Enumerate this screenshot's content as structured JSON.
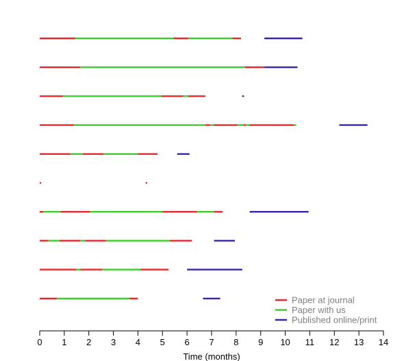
{
  "chart_data": {
    "type": "timeline",
    "title": "",
    "xlabel": "Time (months)",
    "ylabel": "",
    "xlim": [
      0,
      14
    ],
    "xticks": [
      0,
      1,
      2,
      3,
      4,
      5,
      6,
      7,
      8,
      9,
      10,
      11,
      12,
      13,
      14
    ],
    "grid": false,
    "legend_position": "bottom-right",
    "series": [
      {
        "name": "Paper at journal",
        "color": "#e8262e"
      },
      {
        "name": "Paper with us",
        "color": "#3ccd2a"
      },
      {
        "name": "Published online/print",
        "color": "#3a22b0"
      }
    ],
    "rows": [
      {
        "segments": [
          {
            "series": 0,
            "start": 0.0,
            "end": 1.45
          },
          {
            "series": 1,
            "start": 1.45,
            "end": 5.45
          },
          {
            "series": 0,
            "start": 5.45,
            "end": 6.05
          },
          {
            "series": 1,
            "start": 6.05,
            "end": 7.85
          },
          {
            "series": 0,
            "start": 7.85,
            "end": 8.2
          },
          {
            "series": 2,
            "start": 9.15,
            "end": 10.7
          }
        ]
      },
      {
        "segments": [
          {
            "series": 0,
            "start": 0.0,
            "end": 1.65
          },
          {
            "series": 1,
            "start": 1.65,
            "end": 8.35
          },
          {
            "series": 0,
            "start": 8.35,
            "end": 9.15
          },
          {
            "series": 2,
            "start": 9.15,
            "end": 10.5
          }
        ]
      },
      {
        "segments": [
          {
            "series": 0,
            "start": 0.0,
            "end": 0.95
          },
          {
            "series": 1,
            "start": 0.95,
            "end": 4.95
          },
          {
            "series": 0,
            "start": 4.95,
            "end": 5.85
          },
          {
            "series": 1,
            "start": 5.85,
            "end": 6.05
          },
          {
            "series": 0,
            "start": 6.05,
            "end": 6.75
          },
          {
            "series": 2,
            "start": 8.25,
            "end": 8.32
          }
        ]
      },
      {
        "segments": [
          {
            "series": 0,
            "start": 0.0,
            "end": 1.4
          },
          {
            "series": 1,
            "start": 1.4,
            "end": 6.75
          },
          {
            "series": 0,
            "start": 6.75,
            "end": 6.95
          },
          {
            "series": 1,
            "start": 6.95,
            "end": 7.1
          },
          {
            "series": 0,
            "start": 7.1,
            "end": 8.05
          },
          {
            "series": 1,
            "start": 8.05,
            "end": 8.3
          },
          {
            "series": 0,
            "start": 8.3,
            "end": 8.4
          },
          {
            "series": 1,
            "start": 8.4,
            "end": 8.55
          },
          {
            "series": 0,
            "start": 8.55,
            "end": 10.35
          },
          {
            "series": 1,
            "start": 10.35,
            "end": 10.45
          },
          {
            "series": 2,
            "start": 12.2,
            "end": 13.35
          }
        ]
      },
      {
        "segments": [
          {
            "series": 0,
            "start": 0.0,
            "end": 1.25
          },
          {
            "series": 1,
            "start": 1.25,
            "end": 1.75
          },
          {
            "series": 0,
            "start": 1.75,
            "end": 2.6
          },
          {
            "series": 1,
            "start": 2.6,
            "end": 4.0
          },
          {
            "series": 0,
            "start": 4.0,
            "end": 4.8
          },
          {
            "series": 2,
            "start": 5.6,
            "end": 6.1
          }
        ]
      },
      {
        "segments": [
          {
            "series": 0,
            "start": 0.0,
            "end": 0.06
          },
          {
            "series": 0,
            "start": 4.32,
            "end": 4.38
          }
        ]
      },
      {
        "segments": [
          {
            "series": 0,
            "start": 0.0,
            "end": 0.15
          },
          {
            "series": 1,
            "start": 0.15,
            "end": 0.85
          },
          {
            "series": 0,
            "start": 0.85,
            "end": 2.05
          },
          {
            "series": 1,
            "start": 2.05,
            "end": 5.0
          },
          {
            "series": 0,
            "start": 5.0,
            "end": 6.4
          },
          {
            "series": 1,
            "start": 6.4,
            "end": 7.1
          },
          {
            "series": 0,
            "start": 7.1,
            "end": 7.45
          },
          {
            "series": 2,
            "start": 8.55,
            "end": 10.95
          }
        ]
      },
      {
        "segments": [
          {
            "series": 0,
            "start": 0.0,
            "end": 0.35
          },
          {
            "series": 1,
            "start": 0.35,
            "end": 0.8
          },
          {
            "series": 0,
            "start": 0.8,
            "end": 1.65
          },
          {
            "series": 1,
            "start": 1.65,
            "end": 1.85
          },
          {
            "series": 0,
            "start": 1.85,
            "end": 2.7
          },
          {
            "series": 1,
            "start": 2.7,
            "end": 5.3
          },
          {
            "series": 0,
            "start": 5.3,
            "end": 6.2
          },
          {
            "series": 2,
            "start": 7.1,
            "end": 7.95
          }
        ]
      },
      {
        "segments": [
          {
            "series": 0,
            "start": 0.0,
            "end": 1.5
          },
          {
            "series": 1,
            "start": 1.5,
            "end": 1.65
          },
          {
            "series": 0,
            "start": 1.65,
            "end": 2.55
          },
          {
            "series": 1,
            "start": 2.55,
            "end": 4.1
          },
          {
            "series": 0,
            "start": 4.1,
            "end": 5.25
          },
          {
            "series": 2,
            "start": 6.0,
            "end": 8.25
          }
        ]
      },
      {
        "segments": [
          {
            "series": 0,
            "start": 0.0,
            "end": 0.7
          },
          {
            "series": 1,
            "start": 0.7,
            "end": 3.65
          },
          {
            "series": 0,
            "start": 3.65,
            "end": 4.0
          },
          {
            "series": 2,
            "start": 6.65,
            "end": 7.35
          }
        ]
      }
    ]
  }
}
